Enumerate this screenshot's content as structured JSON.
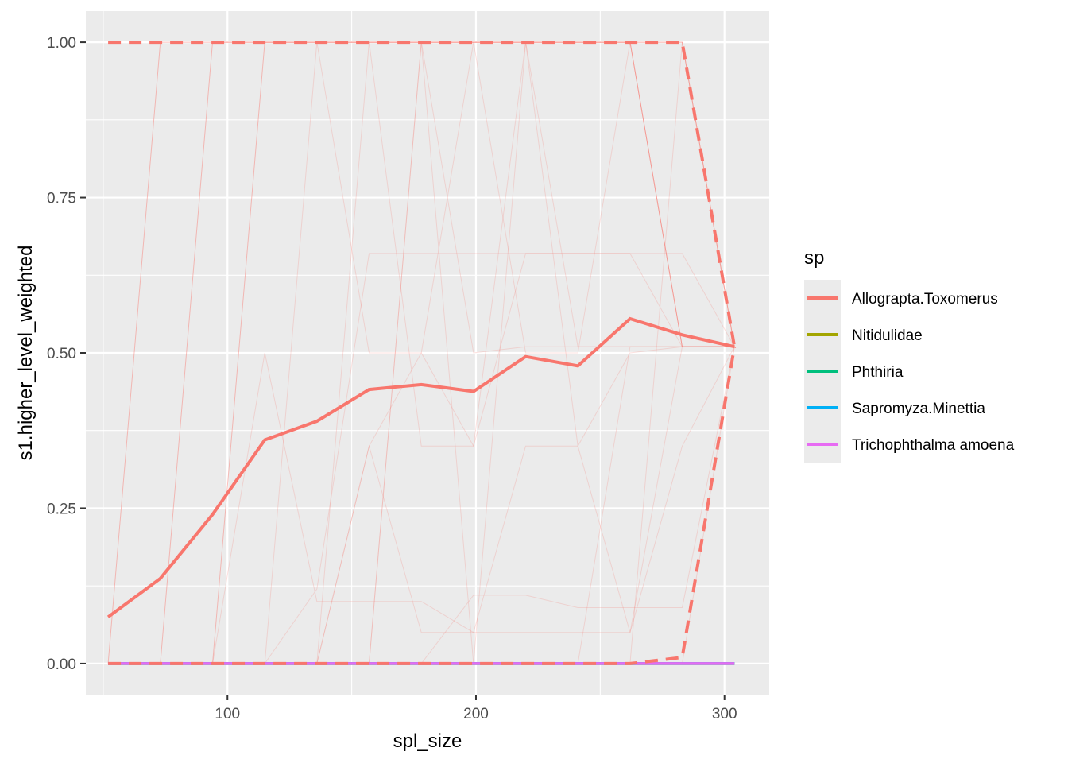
{
  "chart_data": {
    "type": "line",
    "title": "",
    "xlabel": "spl_size",
    "ylabel": "s1.higher_level_weighted",
    "xlim": [
      43,
      318
    ],
    "ylim": [
      -0.05,
      1.05
    ],
    "x_ticks": [
      100,
      200,
      300
    ],
    "x_tick_labels": [
      "100",
      "200",
      "300"
    ],
    "y_ticks": [
      0,
      0.25,
      0.5,
      0.75,
      1
    ],
    "y_tick_labels": [
      "0.00",
      "0.25",
      "0.50",
      "0.75",
      "1.00"
    ],
    "grid": true,
    "legend": {
      "title": "sp",
      "position": "right",
      "entries": [
        {
          "name": "Allograpta.Toxomerus",
          "color": "#F8766D"
        },
        {
          "name": "Nitidulidae",
          "color": "#A3A500"
        },
        {
          "name": "Phthiria",
          "color": "#00BF7D"
        },
        {
          "name": "Sapromyza.Minettia",
          "color": "#00B0F6"
        },
        {
          "name": "Trichophthalma amoena",
          "color": "#E76BF3"
        }
      ]
    },
    "x": [
      52,
      73,
      94,
      115,
      136,
      157,
      178,
      199,
      220,
      241,
      262,
      283,
      304
    ],
    "series": [
      {
        "name": "Allograpta.Toxomerus",
        "color": "#F8766D",
        "role": "mean",
        "values": [
          0.075,
          0.137,
          0.24,
          0.36,
          0.39,
          0.441,
          0.449,
          0.438,
          0.494,
          0.479,
          0.555,
          0.529,
          0.51
        ]
      },
      {
        "name": "Allograpta.Toxomerus",
        "color": "#F8766D",
        "role": "upper-bound",
        "values": [
          1,
          1,
          1,
          1,
          1,
          1,
          1,
          1,
          1,
          1,
          1,
          1,
          0.51
        ]
      },
      {
        "name": "Allograpta.Toxomerus",
        "color": "#F8766D",
        "role": "lower-bound",
        "values": [
          0,
          0,
          0,
          0,
          0,
          0,
          0,
          0,
          0,
          0,
          0,
          0.01,
          0.51
        ]
      },
      {
        "name": "Nitidulidae",
        "color": "#A3A500",
        "values": [
          0,
          0,
          0,
          0,
          0,
          0,
          0,
          0,
          0,
          0,
          0,
          0,
          0
        ]
      },
      {
        "name": "Phthiria",
        "color": "#00BF7D",
        "values": [
          0,
          0,
          0,
          0,
          0,
          0,
          0,
          0,
          0,
          0,
          0,
          0,
          0
        ]
      },
      {
        "name": "Sapromyza.Minettia",
        "color": "#00B0F6",
        "values": [
          0,
          0,
          0,
          0,
          0,
          0,
          0,
          0,
          0,
          0,
          0,
          0,
          0
        ]
      },
      {
        "name": "Trichophthalma amoena",
        "color": "#E76BF3",
        "values": [
          0,
          0,
          0,
          0,
          0,
          0,
          0,
          0,
          0,
          0,
          0,
          0,
          0
        ]
      }
    ],
    "replicates": {
      "series": "Allograpta.Toxomerus",
      "color": "#F8766D",
      "lines": [
        [
          0,
          1,
          1,
          1,
          1,
          1,
          1,
          1,
          1,
          1,
          1,
          1,
          0.51
        ],
        [
          0,
          0,
          1,
          1,
          1,
          1,
          1,
          1,
          1,
          1,
          1,
          0.51,
          0.51
        ],
        [
          0,
          0,
          0,
          1,
          1,
          1,
          1,
          1,
          1,
          1,
          1,
          0.51,
          0.51
        ],
        [
          0,
          0,
          0,
          0,
          1,
          0.5,
          0.5,
          1,
          0.5,
          0.5,
          1,
          1,
          0.51
        ],
        [
          0,
          0,
          0,
          0,
          0,
          1,
          0.35,
          0.35,
          1,
          0.35,
          0.5,
          0.51,
          0.51
        ],
        [
          0,
          0,
          0,
          0,
          0,
          0,
          1,
          0.5,
          0.51,
          0.51,
          0.51,
          0.51,
          0.51
        ],
        [
          0,
          0,
          0,
          0,
          0.12,
          0.66,
          0.66,
          0.66,
          0.66,
          0.66,
          0.66,
          0.51,
          0.51
        ],
        [
          0,
          0,
          0,
          0,
          0,
          0.35,
          0.05,
          0.05,
          0.05,
          0.05,
          0.05,
          0.35,
          0.51
        ],
        [
          0,
          0,
          0,
          0,
          0,
          0,
          0,
          0.11,
          0.11,
          0.09,
          0.09,
          0.09,
          0.51
        ],
        [
          0,
          0,
          0,
          0.5,
          0.1,
          0.1,
          0.1,
          0.05,
          0.35,
          0.35,
          0.05,
          0.51,
          0.51
        ],
        [
          0,
          0,
          0,
          0,
          0,
          0,
          0,
          0,
          0,
          0,
          0,
          1,
          0.51
        ],
        [
          0,
          0,
          0,
          0,
          0,
          0,
          1,
          0,
          0,
          0,
          0,
          0,
          0.51
        ],
        [
          0,
          0,
          0,
          0,
          0,
          0.35,
          0.5,
          0.35,
          0.66,
          0.66,
          0.66,
          0.66,
          0.51
        ],
        [
          0,
          0,
          0,
          0,
          0,
          0,
          0,
          0,
          1,
          0.51,
          0.51,
          0.51,
          0.51
        ],
        [
          0,
          0,
          0,
          0,
          0,
          0,
          0,
          0,
          0,
          0,
          0.51,
          0.51,
          0.51
        ]
      ]
    }
  }
}
